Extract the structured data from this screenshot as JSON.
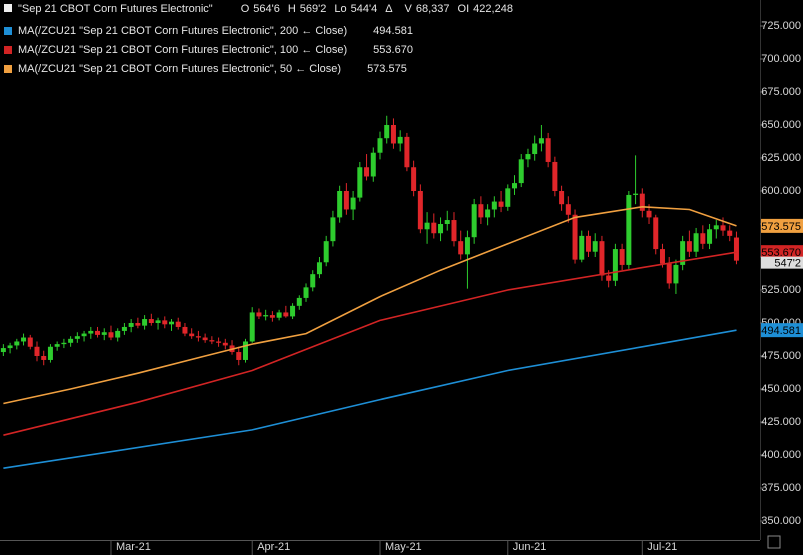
{
  "header": {
    "symbol": "\"Sep 21 CBOT Corn Futures Electronic\"",
    "fields": [
      {
        "name": "O",
        "value": "564'6"
      },
      {
        "name": "H",
        "value": "569'2"
      },
      {
        "name": "Lo",
        "value": "544'4"
      },
      {
        "name": "Δ",
        "value": ""
      },
      {
        "name": "V",
        "value": "68,337"
      },
      {
        "name": "OI",
        "value": "422,248"
      }
    ]
  },
  "chart_data": {
    "type": "candlestick",
    "ylim": [
      350,
      725
    ],
    "yticks": [
      {
        "value": 725,
        "label": "725.000"
      },
      {
        "value": 700,
        "label": "700.000"
      },
      {
        "value": 675,
        "label": "675.000"
      },
      {
        "value": 650,
        "label": "650.000"
      },
      {
        "value": 625,
        "label": "625.000"
      },
      {
        "value": 600,
        "label": "600.000"
      },
      {
        "value": 575,
        "label": "575.000"
      },
      {
        "value": 550,
        "label": "550.000"
      },
      {
        "value": 525,
        "label": "525.000"
      },
      {
        "value": 500,
        "label": "500.000"
      },
      {
        "value": 475,
        "label": "475.000"
      },
      {
        "value": 450,
        "label": "450.000"
      },
      {
        "value": 425,
        "label": "425.000"
      },
      {
        "value": 400,
        "label": "400.000"
      },
      {
        "value": 375,
        "label": "375.000"
      },
      {
        "value": 350,
        "label": "350.000"
      }
    ],
    "xlim": [
      -0.5,
      112.5
    ],
    "xticks": [
      {
        "value": 16,
        "label": "Mar-21"
      },
      {
        "value": 37,
        "label": "Apr-21"
      },
      {
        "value": 56,
        "label": "May-21"
      },
      {
        "value": 75,
        "label": "Jun-21"
      },
      {
        "value": 95,
        "label": "Jul-21"
      }
    ],
    "up_color": "#2ecc2e",
    "down_color": "#e0262a",
    "candles": [
      {
        "open": 478,
        "high": 484,
        "low": 475,
        "close": 481
      },
      {
        "open": 481,
        "high": 485,
        "low": 477,
        "close": 483
      },
      {
        "open": 483,
        "high": 488,
        "low": 480,
        "close": 486
      },
      {
        "open": 486,
        "high": 492,
        "low": 483,
        "close": 489
      },
      {
        "open": 489,
        "high": 491,
        "low": 480,
        "close": 482
      },
      {
        "open": 482,
        "high": 486,
        "low": 471,
        "close": 475
      },
      {
        "open": 475,
        "high": 479,
        "low": 468,
        "close": 472
      },
      {
        "open": 472,
        "high": 484,
        "low": 470,
        "close": 482
      },
      {
        "open": 482,
        "high": 486,
        "low": 479,
        "close": 484
      },
      {
        "open": 484,
        "high": 488,
        "low": 481,
        "close": 485
      },
      {
        "open": 485,
        "high": 490,
        "low": 482,
        "close": 488
      },
      {
        "open": 488,
        "high": 493,
        "low": 485,
        "close": 490
      },
      {
        "open": 490,
        "high": 494,
        "low": 486,
        "close": 492
      },
      {
        "open": 492,
        "high": 497,
        "low": 488,
        "close": 494
      },
      {
        "open": 494,
        "high": 497,
        "low": 489,
        "close": 491
      },
      {
        "open": 491,
        "high": 496,
        "low": 487,
        "close": 493
      },
      {
        "open": 493,
        "high": 498,
        "low": 487,
        "close": 489
      },
      {
        "open": 489,
        "high": 496,
        "low": 486,
        "close": 494
      },
      {
        "open": 494,
        "high": 500,
        "low": 491,
        "close": 497
      },
      {
        "open": 497,
        "high": 503,
        "low": 493,
        "close": 500
      },
      {
        "open": 500,
        "high": 504,
        "low": 496,
        "close": 498
      },
      {
        "open": 498,
        "high": 506,
        "low": 495,
        "close": 503
      },
      {
        "open": 503,
        "high": 507,
        "low": 498,
        "close": 500
      },
      {
        "open": 500,
        "high": 504,
        "low": 495,
        "close": 502
      },
      {
        "open": 502,
        "high": 505,
        "low": 496,
        "close": 499
      },
      {
        "open": 499,
        "high": 503,
        "low": 494,
        "close": 501
      },
      {
        "open": 501,
        "high": 504,
        "low": 495,
        "close": 497
      },
      {
        "open": 497,
        "high": 500,
        "low": 490,
        "close": 492
      },
      {
        "open": 492,
        "high": 496,
        "low": 488,
        "close": 490
      },
      {
        "open": 490,
        "high": 494,
        "low": 486,
        "close": 489
      },
      {
        "open": 489,
        "high": 492,
        "low": 485,
        "close": 487
      },
      {
        "open": 487,
        "high": 490,
        "low": 484,
        "close": 486
      },
      {
        "open": 486,
        "high": 489,
        "low": 482,
        "close": 485
      },
      {
        "open": 485,
        "high": 488,
        "low": 480,
        "close": 483
      },
      {
        "open": 483,
        "high": 487,
        "low": 476,
        "close": 478
      },
      {
        "open": 478,
        "high": 482,
        "low": 468,
        "close": 472
      },
      {
        "open": 472,
        "high": 488,
        "low": 470,
        "close": 486
      },
      {
        "open": 486,
        "high": 512,
        "low": 485,
        "close": 508
      },
      {
        "open": 508,
        "high": 511,
        "low": 503,
        "close": 505
      },
      {
        "open": 505,
        "high": 510,
        "low": 502,
        "close": 506
      },
      {
        "open": 506,
        "high": 509,
        "low": 501,
        "close": 504
      },
      {
        "open": 504,
        "high": 510,
        "low": 502,
        "close": 508
      },
      {
        "open": 508,
        "high": 513,
        "low": 504,
        "close": 505
      },
      {
        "open": 505,
        "high": 515,
        "low": 503,
        "close": 513
      },
      {
        "open": 513,
        "high": 521,
        "low": 510,
        "close": 519
      },
      {
        "open": 519,
        "high": 530,
        "low": 516,
        "close": 527
      },
      {
        "open": 527,
        "high": 540,
        "low": 524,
        "close": 537
      },
      {
        "open": 537,
        "high": 550,
        "low": 534,
        "close": 546
      },
      {
        "open": 546,
        "high": 566,
        "low": 543,
        "close": 562
      },
      {
        "open": 562,
        "high": 585,
        "low": 558,
        "close": 580
      },
      {
        "open": 580,
        "high": 604,
        "low": 576,
        "close": 600
      },
      {
        "open": 600,
        "high": 606,
        "low": 582,
        "close": 586
      },
      {
        "open": 586,
        "high": 600,
        "low": 578,
        "close": 595
      },
      {
        "open": 595,
        "high": 622,
        "low": 592,
        "close": 618
      },
      {
        "open": 618,
        "high": 628,
        "low": 608,
        "close": 611
      },
      {
        "open": 611,
        "high": 633,
        "low": 607,
        "close": 629
      },
      {
        "open": 629,
        "high": 645,
        "low": 624,
        "close": 640
      },
      {
        "open": 640,
        "high": 657,
        "low": 636,
        "close": 650
      },
      {
        "open": 650,
        "high": 655,
        "low": 632,
        "close": 636
      },
      {
        "open": 636,
        "high": 646,
        "low": 630,
        "close": 641
      },
      {
        "open": 641,
        "high": 644,
        "low": 615,
        "close": 618
      },
      {
        "open": 618,
        "high": 623,
        "low": 596,
        "close": 600
      },
      {
        "open": 600,
        "high": 605,
        "low": 568,
        "close": 571
      },
      {
        "open": 571,
        "high": 584,
        "low": 560,
        "close": 576
      },
      {
        "open": 576,
        "high": 583,
        "low": 564,
        "close": 568
      },
      {
        "open": 568,
        "high": 580,
        "low": 562,
        "close": 575
      },
      {
        "open": 575,
        "high": 585,
        "low": 570,
        "close": 578
      },
      {
        "open": 578,
        "high": 584,
        "low": 558,
        "close": 562
      },
      {
        "open": 562,
        "high": 570,
        "low": 548,
        "close": 552
      },
      {
        "open": 552,
        "high": 570,
        "low": 526,
        "close": 565
      },
      {
        "open": 565,
        "high": 594,
        "low": 560,
        "close": 590
      },
      {
        "open": 590,
        "high": 596,
        "low": 575,
        "close": 580
      },
      {
        "open": 580,
        "high": 590,
        "low": 574,
        "close": 586
      },
      {
        "open": 586,
        "high": 596,
        "low": 580,
        "close": 592
      },
      {
        "open": 592,
        "high": 600,
        "low": 584,
        "close": 588
      },
      {
        "open": 588,
        "high": 605,
        "low": 585,
        "close": 602
      },
      {
        "open": 602,
        "high": 612,
        "low": 597,
        "close": 606
      },
      {
        "open": 606,
        "high": 628,
        "low": 603,
        "close": 624
      },
      {
        "open": 624,
        "high": 632,
        "low": 618,
        "close": 628
      },
      {
        "open": 628,
        "high": 642,
        "low": 623,
        "close": 636
      },
      {
        "open": 636,
        "high": 650,
        "low": 630,
        "close": 640
      },
      {
        "open": 640,
        "high": 644,
        "low": 618,
        "close": 622
      },
      {
        "open": 622,
        "high": 626,
        "low": 596,
        "close": 600
      },
      {
        "open": 600,
        "high": 604,
        "low": 585,
        "close": 590
      },
      {
        "open": 590,
        "high": 596,
        "low": 576,
        "close": 582
      },
      {
        "open": 582,
        "high": 586,
        "low": 545,
        "close": 548
      },
      {
        "open": 548,
        "high": 570,
        "low": 546,
        "close": 566
      },
      {
        "open": 566,
        "high": 570,
        "low": 550,
        "close": 554
      },
      {
        "open": 554,
        "high": 568,
        "low": 550,
        "close": 562
      },
      {
        "open": 562,
        "high": 566,
        "low": 532,
        "close": 536
      },
      {
        "open": 536,
        "high": 540,
        "low": 527,
        "close": 532
      },
      {
        "open": 532,
        "high": 560,
        "low": 528,
        "close": 556
      },
      {
        "open": 556,
        "high": 560,
        "low": 540,
        "close": 544
      },
      {
        "open": 544,
        "high": 600,
        "low": 541,
        "close": 597
      },
      {
        "open": 597,
        "high": 627,
        "low": 590,
        "close": 598
      },
      {
        "open": 598,
        "high": 602,
        "low": 580,
        "close": 585
      },
      {
        "open": 585,
        "high": 590,
        "low": 575,
        "close": 580
      },
      {
        "open": 580,
        "high": 582,
        "low": 552,
        "close": 556
      },
      {
        "open": 556,
        "high": 560,
        "low": 542,
        "close": 545
      },
      {
        "open": 545,
        "high": 550,
        "low": 526,
        "close": 530
      },
      {
        "open": 530,
        "high": 548,
        "low": 522,
        "close": 544
      },
      {
        "open": 544,
        "high": 566,
        "low": 540,
        "close": 562
      },
      {
        "open": 562,
        "high": 570,
        "low": 550,
        "close": 554
      },
      {
        "open": 554,
        "high": 572,
        "low": 550,
        "close": 568
      },
      {
        "open": 568,
        "high": 574,
        "low": 556,
        "close": 560
      },
      {
        "open": 560,
        "high": 575,
        "low": 556,
        "close": 571
      },
      {
        "open": 571,
        "high": 578,
        "low": 564,
        "close": 574
      },
      {
        "open": 574,
        "high": 580,
        "low": 566,
        "close": 570
      },
      {
        "open": 570,
        "high": 574,
        "low": 562,
        "close": 566
      },
      {
        "open": 564.75,
        "high": 569.25,
        "low": 544.5,
        "close": 547.25
      }
    ],
    "last_close_label": "547'2",
    "series": [
      {
        "name": "MA(/ZCU21 \"Sep 21 CBOT Corn Futures Electronic\", 200 ← Close)",
        "color": "#1e8fd6",
        "last_label": "494.581",
        "x": [
          0,
          37,
          56,
          75,
          95,
          109
        ],
        "values": [
          390,
          419,
          442,
          464,
          482,
          494.581
        ]
      },
      {
        "name": "MA(/ZCU21 \"Sep 21 CBOT Corn Futures Electronic\", 100 ← Close)",
        "color": "#d22424",
        "last_label": "553.670",
        "x": [
          0,
          20,
          37,
          56,
          75,
          95,
          109
        ],
        "values": [
          415,
          440,
          464,
          502,
          525,
          542,
          553.67
        ]
      },
      {
        "name": "MA(/ZCU21 \"Sep 21 CBOT Corn Futures Electronic\", 50 ← Close)",
        "color": "#f0a040",
        "last_label": "573.575",
        "x": [
          0,
          10,
          20,
          30,
          37,
          45,
          56,
          65,
          75,
          85,
          95,
          102,
          109
        ],
        "values": [
          439,
          450,
          462,
          475,
          484,
          492,
          520,
          540,
          560,
          580,
          588,
          586,
          573.575
        ]
      }
    ]
  }
}
